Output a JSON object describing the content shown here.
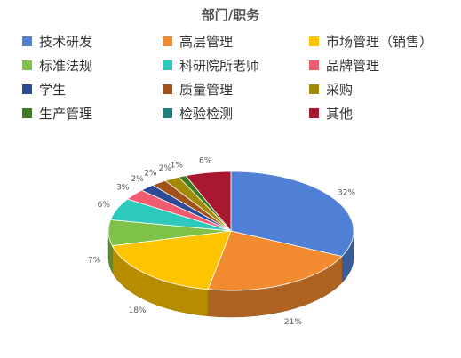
{
  "chart_data": {
    "type": "pie",
    "title": "部门/职务",
    "legend_position": "top",
    "categories": [
      "技术研发",
      "高层管理",
      "市场管理（销售）",
      "标准法规",
      "科研院所老师",
      "品牌管理",
      "学生",
      "质量管理",
      "采购",
      "生产管理",
      "检验检测",
      "其他"
    ],
    "values": [
      32,
      21,
      18,
      7,
      6,
      3,
      2,
      2,
      2,
      1,
      0,
      6
    ],
    "labels": [
      "32%",
      "21%",
      "18%",
      "7%",
      "6%",
      "3%",
      "2%",
      "2%",
      "2%",
      "1%",
      "",
      "6%"
    ],
    "colors": [
      "#4f80d6",
      "#f28a30",
      "#fec400",
      "#7ec247",
      "#2ec9bd",
      "#f25c70",
      "#2c4b96",
      "#a1521a",
      "#a18a06",
      "#3e7d1f",
      "#1f8080",
      "#a8192f"
    ]
  }
}
